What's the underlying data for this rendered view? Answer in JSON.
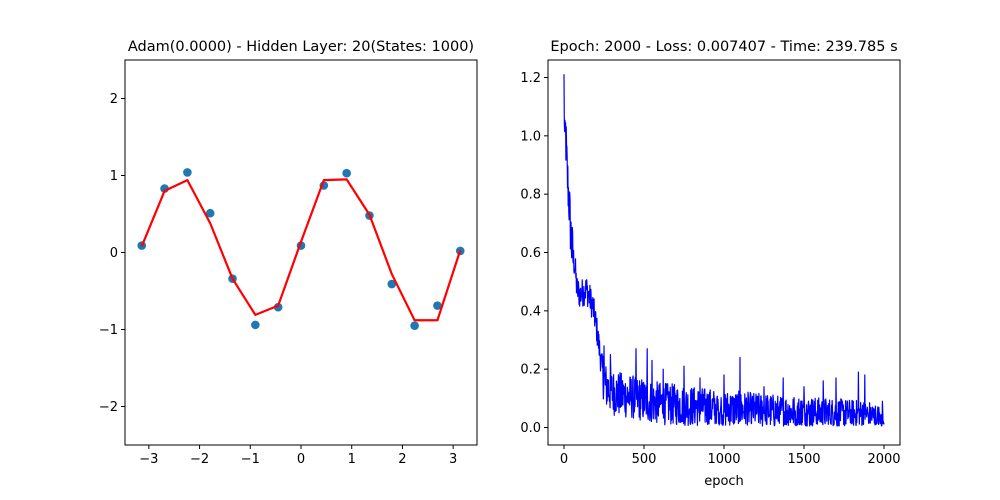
{
  "chart_data": [
    {
      "type": "scatter",
      "title": "Adam(0.0000) - Hidden Layer: 20(States: 1000)",
      "xlabel": "",
      "ylabel": "",
      "xlim": [
        -3.47,
        3.47
      ],
      "ylim": [
        -2.5,
        2.5
      ],
      "xticks": [
        -3,
        -2,
        -1,
        0,
        1,
        2,
        3
      ],
      "yticks": [
        -2,
        -1,
        0,
        1,
        2
      ],
      "xtick_labels": [
        "−3",
        "−2",
        "−1",
        "0",
        "1",
        "2",
        "3"
      ],
      "ytick_labels": [
        "−2",
        "−1",
        "0",
        "1",
        "2"
      ],
      "grid": false,
      "series": [
        {
          "kind": "scatter",
          "color": "#1f77b4",
          "x": [
            -3.14,
            -2.69,
            -2.24,
            -1.79,
            -1.35,
            -0.9,
            -0.45,
            0.0,
            0.45,
            0.9,
            1.35,
            1.79,
            2.24,
            2.69,
            3.14
          ],
          "y": [
            0.09,
            0.83,
            1.04,
            0.51,
            -0.34,
            -0.94,
            -0.71,
            0.09,
            0.87,
            1.03,
            0.48,
            -0.41,
            -0.95,
            -0.69,
            0.02
          ]
        },
        {
          "kind": "line",
          "color": "#ff0000",
          "x": [
            -3.14,
            -2.69,
            -2.24,
            -1.79,
            -1.35,
            -0.9,
            -0.45,
            0.0,
            0.45,
            0.9,
            1.35,
            1.79,
            2.24,
            2.69,
            3.14
          ],
          "y": [
            0.08,
            0.8,
            0.94,
            0.38,
            -0.34,
            -0.81,
            -0.69,
            0.14,
            0.94,
            0.95,
            0.49,
            -0.28,
            -0.88,
            -0.88,
            0.03
          ]
        }
      ]
    },
    {
      "type": "line",
      "title": "Epoch: 2000 - Loss: 0.007407 - Time: 239.785 s",
      "xlabel": "epoch",
      "ylabel": "",
      "xlim": [
        -100,
        2100
      ],
      "ylim": [
        -0.06,
        1.26
      ],
      "xticks": [
        0,
        500,
        1000,
        1500,
        2000
      ],
      "yticks": [
        0.0,
        0.2,
        0.4,
        0.6,
        0.8,
        1.0,
        1.2
      ],
      "xtick_labels": [
        "0",
        "500",
        "1000",
        "1500",
        "2000"
      ],
      "ytick_labels": [
        "0.0",
        "0.2",
        "0.4",
        "0.6",
        "0.8",
        "1.0",
        "1.2"
      ],
      "grid": false,
      "series": [
        {
          "kind": "line",
          "color": "#0000ff",
          "x": [
            0,
            5,
            10,
            20,
            30,
            40,
            50,
            60,
            70,
            80,
            100,
            120,
            140,
            160,
            180,
            200,
            220,
            240,
            260,
            280,
            300,
            350,
            400,
            450,
            500,
            600,
            700,
            800,
            900,
            1000,
            1100,
            1200,
            1300,
            1400,
            1500,
            1600,
            1700,
            1800,
            1900,
            2000
          ],
          "y": [
            1.19,
            0.95,
            1.02,
            0.88,
            0.8,
            0.7,
            0.62,
            0.58,
            0.55,
            0.48,
            0.46,
            0.47,
            0.48,
            0.45,
            0.42,
            0.36,
            0.28,
            0.2,
            0.15,
            0.14,
            0.13,
            0.12,
            0.115,
            0.11,
            0.1,
            0.09,
            0.085,
            0.08,
            0.075,
            0.07,
            0.068,
            0.065,
            0.062,
            0.06,
            0.058,
            0.056,
            0.054,
            0.052,
            0.05,
            0.03
          ]
        }
      ],
      "noise_peaks": [
        {
          "x": 250,
          "y": 0.28
        },
        {
          "x": 290,
          "y": 0.25
        },
        {
          "x": 450,
          "y": 0.27
        },
        {
          "x": 520,
          "y": 0.27
        },
        {
          "x": 550,
          "y": 0.23
        },
        {
          "x": 620,
          "y": 0.2
        },
        {
          "x": 750,
          "y": 0.21
        },
        {
          "x": 850,
          "y": 0.17
        },
        {
          "x": 1000,
          "y": 0.18
        },
        {
          "x": 1100,
          "y": 0.24
        },
        {
          "x": 1250,
          "y": 0.14
        },
        {
          "x": 1370,
          "y": 0.17
        },
        {
          "x": 1500,
          "y": 0.14
        },
        {
          "x": 1620,
          "y": 0.16
        },
        {
          "x": 1700,
          "y": 0.17
        },
        {
          "x": 1840,
          "y": 0.19
        },
        {
          "x": 1880,
          "y": 0.18
        },
        {
          "x": 1990,
          "y": 0.09
        }
      ]
    }
  ]
}
